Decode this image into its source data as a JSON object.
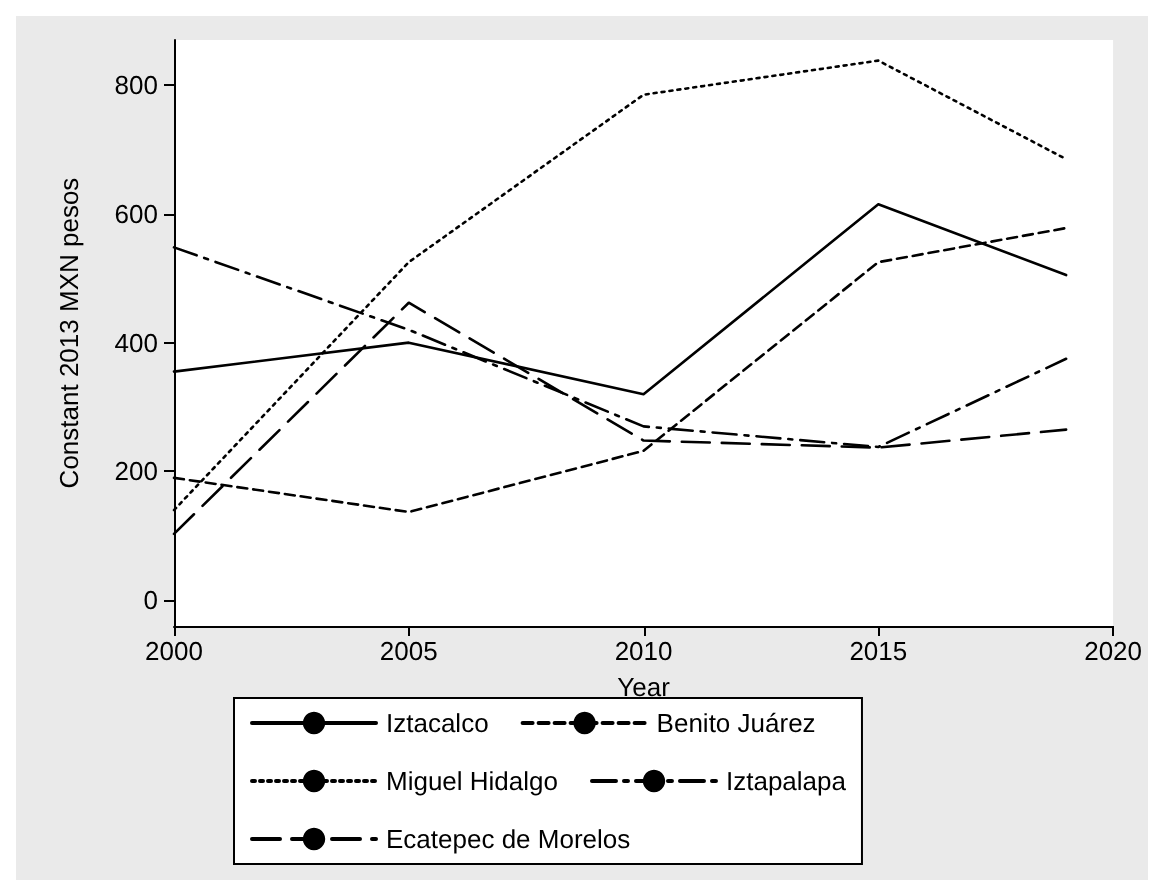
{
  "chart_data": {
    "type": "line",
    "xlabel": "Year",
    "ylabel": "Constant 2013 MXN pesos",
    "x": [
      2000,
      2005,
      2010,
      2015,
      2019
    ],
    "series": [
      {
        "name": "Iztacalco",
        "color": "#000000",
        "line_style": "solid",
        "values": [
          355,
          400,
          320,
          615,
          505
        ]
      },
      {
        "name": "Benito Juárez",
        "color": "#000000",
        "line_style": "dashed",
        "values": [
          190,
          137,
          232,
          525,
          578
        ]
      },
      {
        "name": "Miguel Hidalgo",
        "color": "#000000",
        "line_style": "dotted",
        "values": [
          140,
          525,
          785,
          838,
          685
        ]
      },
      {
        "name": "Iztapalapa",
        "color": "#000000",
        "line_style": "dashdot",
        "values": [
          548,
          420,
          270,
          238,
          375
        ]
      },
      {
        "name": "Ecatepec de Morelos",
        "color": "#000000",
        "line_style": "longdash",
        "values": [
          103,
          462,
          248,
          237,
          265
        ]
      }
    ],
    "xlim": [
      2000,
      2020
    ],
    "xticks": [
      2000,
      2005,
      2010,
      2015,
      2020
    ],
    "ylim": [
      -40,
      870
    ],
    "yticks": [
      0,
      200,
      400,
      600,
      800
    ],
    "grid": false,
    "legend": "bottom",
    "marker": "none"
  }
}
